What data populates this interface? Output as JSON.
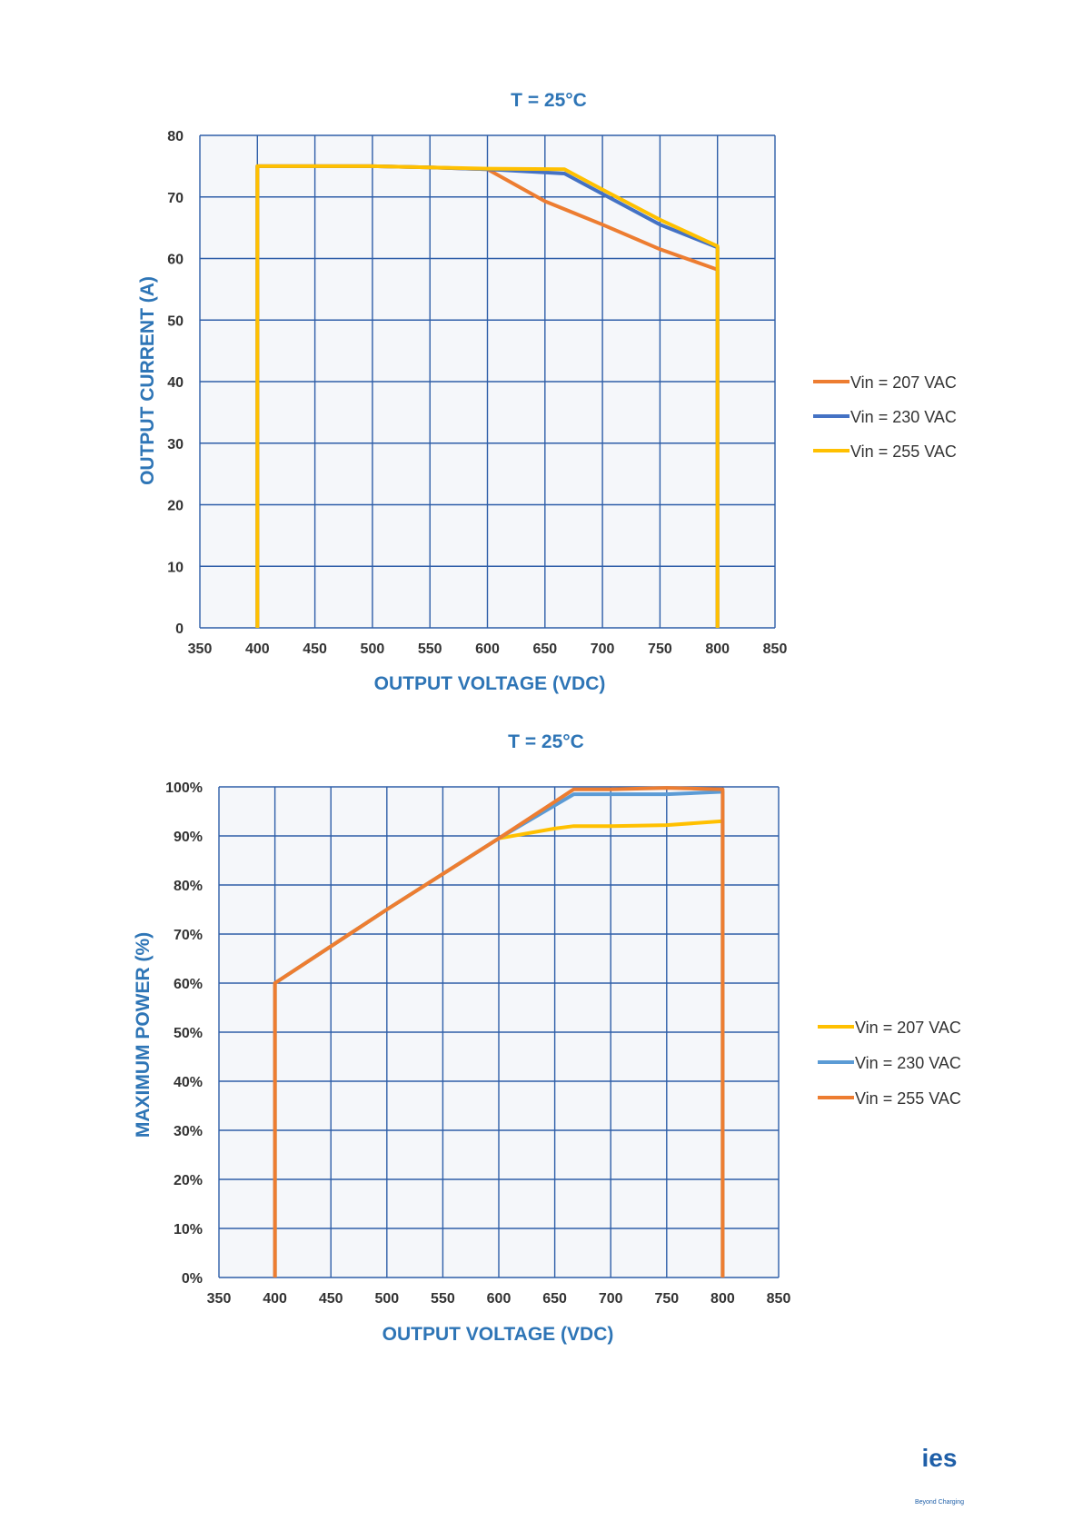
{
  "chart_data": [
    {
      "type": "line",
      "title": "T = 25°C",
      "xlabel": "OUTPUT VOLTAGE (VDC)",
      "ylabel": "OUTPUT CURRENT (A)",
      "xlim": [
        350,
        850
      ],
      "ylim": [
        0,
        80
      ],
      "xticks": [
        350,
        400,
        450,
        500,
        550,
        600,
        650,
        700,
        750,
        800,
        850
      ],
      "yticks": [
        0,
        10,
        20,
        30,
        40,
        50,
        60,
        70,
        80
      ],
      "ytick_labels": [
        "0",
        "10",
        "20",
        "30",
        "40",
        "50",
        "60",
        "70",
        "80"
      ],
      "grid": true,
      "legend_position": "right",
      "series": [
        {
          "name": "Vin = 207 VAC",
          "color": "#ed7d31",
          "x": [
            400,
            400,
            500,
            550,
            600,
            650,
            700,
            750,
            800,
            800
          ],
          "y": [
            0,
            75,
            75,
            74.8,
            74.5,
            69.3,
            65.5,
            61.5,
            58.2,
            0
          ]
        },
        {
          "name": "Vin = 230 VAC",
          "color": "#4472c4",
          "x": [
            400,
            400,
            500,
            550,
            600,
            667,
            700,
            750,
            800,
            800
          ],
          "y": [
            0,
            75,
            75,
            74.8,
            74.5,
            73.8,
            70.5,
            65.5,
            61.8,
            0
          ]
        },
        {
          "name": "Vin = 255 VAC",
          "color": "#ffc000",
          "x": [
            400,
            400,
            500,
            550,
            600,
            667,
            700,
            750,
            800,
            800
          ],
          "y": [
            0,
            75,
            75,
            74.8,
            74.6,
            74.5,
            71.2,
            66.3,
            62,
            0
          ]
        }
      ]
    },
    {
      "type": "line",
      "title": "T = 25°C",
      "xlabel": "OUTPUT VOLTAGE (VDC)",
      "ylabel": "MAXIMUM POWER (%)",
      "xlim": [
        350,
        850
      ],
      "ylim": [
        0,
        100
      ],
      "xticks": [
        350,
        400,
        450,
        500,
        550,
        600,
        650,
        700,
        750,
        800,
        850
      ],
      "yticks": [
        0,
        10,
        20,
        30,
        40,
        50,
        60,
        70,
        80,
        90,
        100
      ],
      "ytick_labels": [
        "0%",
        "10%",
        "20%",
        "30%",
        "40%",
        "50%",
        "60%",
        "70%",
        "80%",
        "90%",
        "100%"
      ],
      "grid": true,
      "legend_position": "right",
      "series": [
        {
          "name": "Vin = 207 VAC",
          "color": "#ffc000",
          "x": [
            400,
            400,
            500,
            600,
            650,
            667,
            700,
            750,
            800,
            800
          ],
          "y": [
            0,
            60,
            75,
            89.5,
            91.5,
            92,
            92,
            92.2,
            93,
            0
          ]
        },
        {
          "name": "Vin = 230 VAC",
          "color": "#5b9bd5",
          "x": [
            400,
            400,
            500,
            600,
            667,
            700,
            750,
            800,
            800
          ],
          "y": [
            0,
            60,
            75,
            89.5,
            98.5,
            98.5,
            98.5,
            99,
            0
          ]
        },
        {
          "name": "Vin = 255 VAC",
          "color": "#ed7d31",
          "x": [
            400,
            400,
            500,
            600,
            667,
            700,
            750,
            800,
            800
          ],
          "y": [
            0,
            60,
            75,
            89.5,
            99.5,
            99.5,
            99.8,
            99.5,
            0
          ]
        }
      ]
    }
  ],
  "logo": {
    "text": "ies",
    "tagline": "Beyond Charging"
  }
}
